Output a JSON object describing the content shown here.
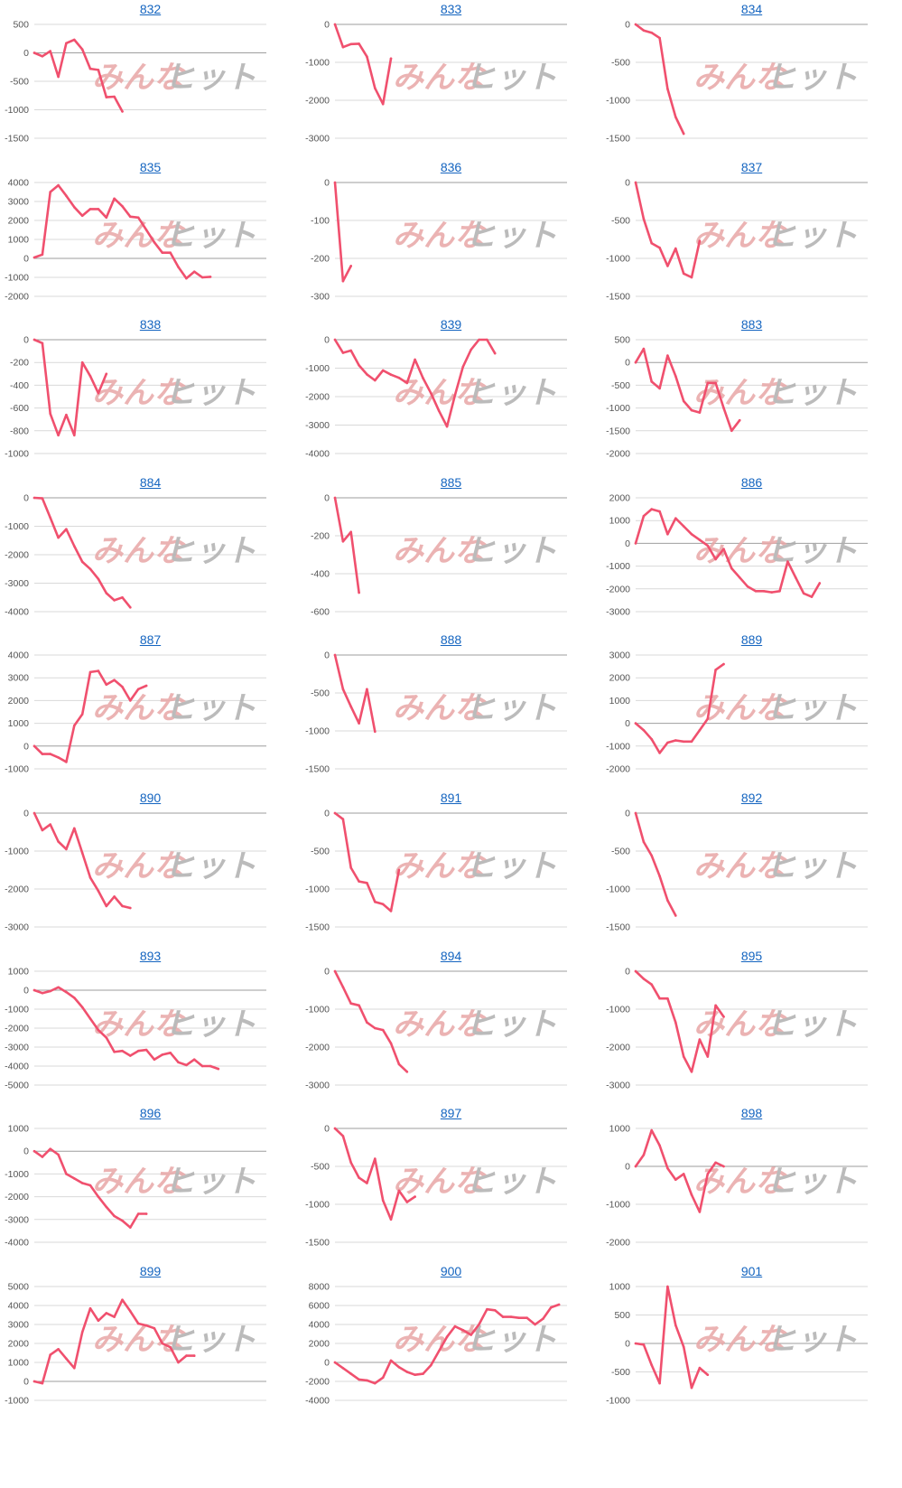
{
  "colors": {
    "line": "#f0506e",
    "grid": "#d9d9d9",
    "title": "#1565c0",
    "tick": "#555555"
  },
  "watermark": {
    "left": "みんな",
    "right": "ヒット"
  },
  "chart_data": [
    {
      "type": "line",
      "title": "832",
      "yticks": [
        500,
        0,
        -500,
        -1000,
        -1500
      ],
      "ylim": [
        -1500,
        500
      ],
      "values": [
        0,
        -60,
        30,
        -420,
        170,
        230,
        60,
        -280,
        -300,
        -780,
        -770,
        -1030
      ]
    },
    {
      "type": "line",
      "title": "833",
      "yticks": [
        0,
        -1000,
        -2000,
        -3000
      ],
      "ylim": [
        -3000,
        0
      ],
      "values": [
        0,
        -600,
        -520,
        -510,
        -850,
        -1680,
        -2100,
        -900
      ]
    },
    {
      "type": "line",
      "title": "834",
      "yticks": [
        0,
        -500,
        -1000,
        -1500
      ],
      "ylim": [
        -1500,
        0
      ],
      "values": [
        0,
        -80,
        -110,
        -180,
        -850,
        -1220,
        -1440
      ]
    },
    {
      "type": "line",
      "title": "835",
      "yticks": [
        4000,
        3000,
        2000,
        1000,
        0,
        -1000,
        -2000
      ],
      "ylim": [
        -2000,
        4000
      ],
      "values": [
        50,
        200,
        3500,
        3850,
        3300,
        2700,
        2250,
        2600,
        2600,
        2150,
        3150,
        2750,
        2200,
        2150,
        1500,
        850,
        300,
        300,
        -450,
        -1050,
        -700,
        -1000,
        -970
      ]
    },
    {
      "type": "line",
      "title": "836",
      "yticks": [
        0,
        -100,
        -200,
        -300
      ],
      "ylim": [
        -300,
        0
      ],
      "values": [
        0,
        -260,
        -220
      ]
    },
    {
      "type": "line",
      "title": "837",
      "yticks": [
        0,
        -500,
        -1000,
        -1500
      ],
      "ylim": [
        -1500,
        0
      ],
      "values": [
        0,
        -480,
        -800,
        -860,
        -1100,
        -870,
        -1200,
        -1250,
        -770
      ]
    },
    {
      "type": "line",
      "title": "838",
      "yticks": [
        0,
        -200,
        -400,
        -600,
        -800,
        -1000
      ],
      "ylim": [
        -1000,
        0
      ],
      "values": [
        0,
        -30,
        -650,
        -840,
        -660,
        -840,
        -200,
        -320,
        -470,
        -300
      ]
    },
    {
      "type": "line",
      "title": "839",
      "yticks": [
        0,
        -1000,
        -2000,
        -3000,
        -4000
      ],
      "ylim": [
        -4000,
        0
      ],
      "values": [
        0,
        -460,
        -380,
        -900,
        -1220,
        -1430,
        -1080,
        -1230,
        -1340,
        -1520,
        -700,
        -1350,
        -1880,
        -2500,
        -3050,
        -1950,
        -950,
        -350,
        0,
        0,
        -480
      ]
    },
    {
      "type": "line",
      "title": "883",
      "yticks": [
        500,
        0,
        -500,
        -1000,
        -1500,
        -2000
      ],
      "ylim": [
        -2000,
        500
      ],
      "values": [
        0,
        300,
        -420,
        -570,
        150,
        -300,
        -850,
        -1050,
        -1100,
        -450,
        -450,
        -1000,
        -1500,
        -1270
      ]
    },
    {
      "type": "line",
      "title": "884",
      "yticks": [
        0,
        -1000,
        -2000,
        -3000,
        -4000
      ],
      "ylim": [
        -4000,
        0
      ],
      "values": [
        0,
        -20,
        -700,
        -1400,
        -1100,
        -1700,
        -2250,
        -2500,
        -2850,
        -3350,
        -3600,
        -3500,
        -3850
      ]
    },
    {
      "type": "line",
      "title": "885",
      "yticks": [
        0,
        -200,
        -400,
        -600
      ],
      "ylim": [
        -600,
        0
      ],
      "values": [
        0,
        -230,
        -180,
        -500
      ]
    },
    {
      "type": "line",
      "title": "886",
      "yticks": [
        2000,
        1000,
        0,
        -1000,
        -2000,
        -3000
      ],
      "ylim": [
        -3000,
        2000
      ],
      "values": [
        0,
        1200,
        1500,
        1400,
        400,
        1100,
        750,
        400,
        150,
        -100,
        -700,
        -250,
        -1100,
        -1500,
        -1900,
        -2100,
        -2100,
        -2150,
        -2100,
        -800,
        -1500,
        -2200,
        -2350,
        -1750
      ]
    },
    {
      "type": "line",
      "title": "887",
      "yticks": [
        4000,
        3000,
        2000,
        1000,
        0,
        -1000
      ],
      "ylim": [
        -1000,
        4000
      ],
      "values": [
        0,
        -350,
        -350,
        -500,
        -700,
        900,
        1400,
        3250,
        3300,
        2700,
        2900,
        2600,
        2000,
        2500,
        2650
      ]
    },
    {
      "type": "line",
      "title": "888",
      "yticks": [
        0,
        -500,
        -1000,
        -1500
      ],
      "ylim": [
        -1500,
        0
      ],
      "values": [
        0,
        -450,
        -680,
        -900,
        -450,
        -1010
      ]
    },
    {
      "type": "line",
      "title": "889",
      "yticks": [
        3000,
        2000,
        1000,
        0,
        -1000,
        -2000
      ],
      "ylim": [
        -2000,
        3000
      ],
      "values": [
        0,
        -300,
        -700,
        -1300,
        -850,
        -750,
        -800,
        -800,
        -300,
        200,
        2350,
        2600
      ]
    },
    {
      "type": "line",
      "title": "890",
      "yticks": [
        0,
        -1000,
        -2000,
        -3000
      ],
      "ylim": [
        -3000,
        0
      ],
      "values": [
        0,
        -450,
        -300,
        -750,
        -950,
        -400,
        -1050,
        -1700,
        -2050,
        -2450,
        -2200,
        -2450,
        -2500
      ]
    },
    {
      "type": "line",
      "title": "891",
      "yticks": [
        0,
        -500,
        -1000,
        -1500
      ],
      "ylim": [
        -1500,
        0
      ],
      "values": [
        0,
        -80,
        -720,
        -900,
        -920,
        -1170,
        -1200,
        -1290,
        -750
      ]
    },
    {
      "type": "line",
      "title": "892",
      "yticks": [
        0,
        -500,
        -1000,
        -1500
      ],
      "ylim": [
        -1500,
        0
      ],
      "values": [
        0,
        -380,
        -560,
        -830,
        -1150,
        -1350
      ]
    },
    {
      "type": "line",
      "title": "893",
      "yticks": [
        1000,
        0,
        -1000,
        -2000,
        -3000,
        -4000,
        -5000
      ],
      "ylim": [
        -5000,
        1000
      ],
      "values": [
        0,
        -150,
        -50,
        150,
        -100,
        -400,
        -900,
        -1500,
        -2100,
        -2500,
        -3250,
        -3200,
        -3450,
        -3200,
        -3150,
        -3650,
        -3400,
        -3300,
        -3800,
        -3950,
        -3650,
        -4000,
        -4000,
        -4150
      ]
    },
    {
      "type": "line",
      "title": "894",
      "yticks": [
        0,
        -1000,
        -2000,
        -3000
      ],
      "ylim": [
        -3000,
        0
      ],
      "values": [
        0,
        -420,
        -850,
        -900,
        -1350,
        -1500,
        -1550,
        -1900,
        -2450,
        -2650
      ]
    },
    {
      "type": "line",
      "title": "895",
      "yticks": [
        0,
        -1000,
        -2000,
        -3000
      ],
      "ylim": [
        -3000,
        0
      ],
      "values": [
        0,
        -200,
        -350,
        -720,
        -720,
        -1350,
        -2250,
        -2650,
        -1800,
        -2250,
        -900,
        -1200
      ]
    },
    {
      "type": "line",
      "title": "896",
      "yticks": [
        1000,
        0,
        -1000,
        -2000,
        -3000,
        -4000
      ],
      "ylim": [
        -4000,
        1000
      ],
      "values": [
        0,
        -250,
        100,
        -150,
        -1000,
        -1200,
        -1400,
        -1500,
        -2000,
        -2450,
        -2850,
        -3050,
        -3350,
        -2750,
        -2750
      ]
    },
    {
      "type": "line",
      "title": "897",
      "yticks": [
        0,
        -500,
        -1000,
        -1500
      ],
      "ylim": [
        -1500,
        0
      ],
      "values": [
        0,
        -100,
        -450,
        -650,
        -720,
        -400,
        -950,
        -1200,
        -820,
        -970,
        -900
      ]
    },
    {
      "type": "line",
      "title": "898",
      "yticks": [
        1000,
        0,
        -1000,
        -2000
      ],
      "ylim": [
        -2000,
        1000
      ],
      "values": [
        0,
        300,
        950,
        550,
        -50,
        -350,
        -200,
        -750,
        -1200,
        -200,
        100,
        0
      ]
    },
    {
      "type": "line",
      "title": "899",
      "yticks": [
        5000,
        4000,
        3000,
        2000,
        1000,
        0,
        -1000
      ],
      "ylim": [
        -1000,
        5000
      ],
      "values": [
        0,
        -100,
        1400,
        1700,
        1200,
        700,
        2600,
        3850,
        3200,
        3600,
        3400,
        4300,
        3700,
        3050,
        2950,
        2800,
        2000,
        1800,
        1000,
        1350,
        1350
      ]
    },
    {
      "type": "line",
      "title": "900",
      "yticks": [
        8000,
        6000,
        4000,
        2000,
        0,
        -2000,
        -4000
      ],
      "ylim": [
        -4000,
        8000
      ],
      "values": [
        0,
        -600,
        -1200,
        -1800,
        -1900,
        -2200,
        -1600,
        200,
        -500,
        -1000,
        -1300,
        -1200,
        -300,
        1200,
        2700,
        3800,
        3400,
        2900,
        4000,
        5600,
        5500,
        4800,
        4800,
        4700,
        4700,
        4000,
        4600,
        5800,
        6100
      ]
    },
    {
      "type": "line",
      "title": "901",
      "yticks": [
        1000,
        500,
        0,
        -500,
        -1000
      ],
      "ylim": [
        -1000,
        1000
      ],
      "values": [
        0,
        -20,
        -380,
        -700,
        1000,
        320,
        -60,
        -780,
        -430,
        -550
      ]
    }
  ]
}
